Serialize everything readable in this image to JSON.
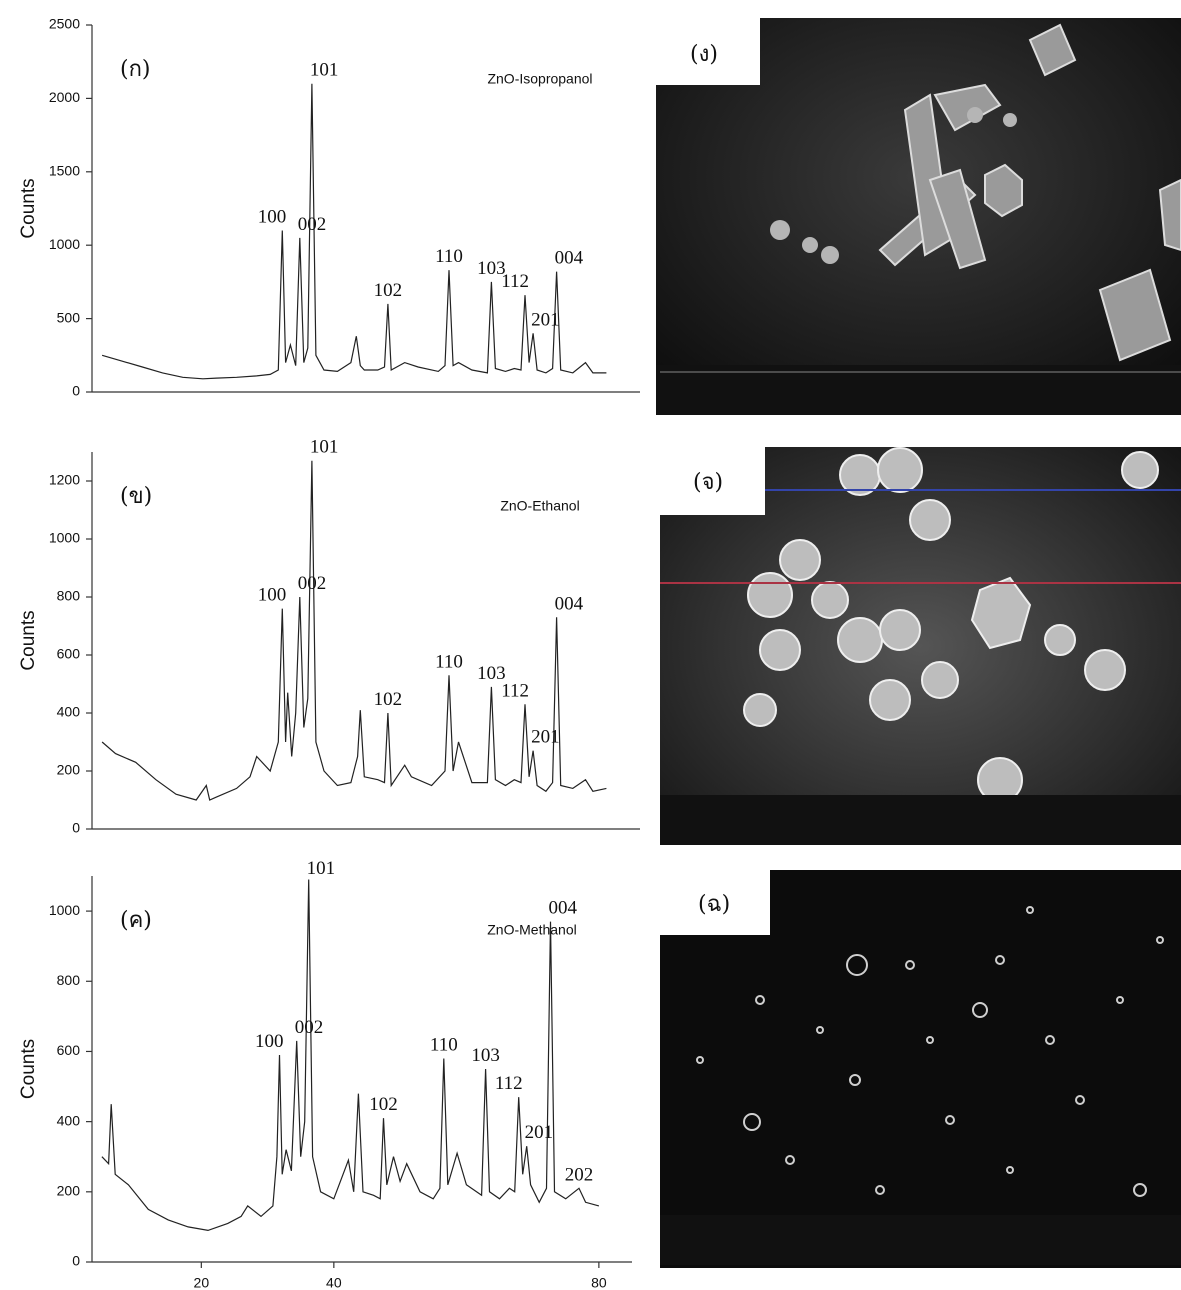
{
  "chart_data": [
    {
      "type": "line",
      "panel_label": "(ก)",
      "annotation": "ZnO-Isopropanol",
      "y_label": "Counts",
      "xlim": [
        3.5,
        85
      ],
      "ylim": [
        0,
        2500
      ],
      "yticks": [
        0,
        500,
        1000,
        1500,
        2000,
        2500
      ],
      "x": [
        5,
        8,
        11,
        14,
        17,
        20,
        22,
        25,
        28,
        30,
        31.2,
        31.8,
        32.3,
        33,
        33.8,
        34.4,
        35,
        35.6,
        36.2,
        36.8,
        38,
        40,
        42,
        42.8,
        43.4,
        44,
        46,
        47,
        47.5,
        48,
        50,
        52,
        55,
        56,
        56.6,
        57.2,
        58,
        60,
        62.3,
        62.9,
        63.5,
        65,
        66.3,
        67.3,
        67.9,
        68.5,
        69.1,
        69.7,
        71,
        72,
        72.6,
        73.2,
        75,
        76.9,
        78,
        80
      ],
      "series": [
        {
          "color": "#222222",
          "values": [
            250,
            210,
            170,
            130,
            100,
            90,
            95,
            100,
            110,
            120,
            150,
            1100,
            200,
            320,
            180,
            1050,
            200,
            300,
            2100,
            250,
            150,
            140,
            200,
            380,
            180,
            150,
            150,
            170,
            600,
            150,
            200,
            170,
            140,
            180,
            830,
            180,
            200,
            150,
            130,
            750,
            160,
            140,
            160,
            150,
            660,
            200,
            400,
            150,
            130,
            160,
            820,
            150,
            130,
            200,
            130,
            130
          ]
        }
      ],
      "peak_labels": [
        {
          "label": "100",
          "x": 31.8
        },
        {
          "label": "002",
          "x": 34.4
        },
        {
          "label": "101",
          "x": 36.2
        },
        {
          "label": "102",
          "x": 47.5
        },
        {
          "label": "110",
          "x": 56.6
        },
        {
          "label": "103",
          "x": 62.9
        },
        {
          "label": "112",
          "x": 67.9
        },
        {
          "label": "201",
          "x": 69.1
        },
        {
          "label": "004",
          "x": 72.6
        }
      ]
    },
    {
      "type": "line",
      "panel_label": "(ข)",
      "annotation": "ZnO-Ethanol",
      "y_label": "Counts",
      "xlim": [
        3.5,
        85
      ],
      "ylim": [
        0,
        1300
      ],
      "yticks": [
        0,
        200,
        400,
        600,
        800,
        1000,
        1200
      ],
      "x": [
        5,
        7,
        10,
        13,
        16,
        19,
        20.5,
        21,
        22,
        25,
        27,
        28,
        30,
        31.2,
        31.8,
        32.3,
        32.6,
        33.2,
        33.8,
        34.4,
        35,
        35.6,
        36.2,
        36.8,
        38,
        40,
        42,
        43,
        43.4,
        44,
        46,
        47,
        47.5,
        48,
        50,
        51,
        54,
        56,
        56.6,
        57.2,
        58,
        60,
        62.3,
        62.9,
        63.5,
        65,
        66.3,
        67.3,
        67.9,
        68.5,
        69.1,
        69.7,
        71,
        72,
        72.6,
        73.2,
        75,
        76.9,
        78,
        80
      ],
      "series": [
        {
          "color": "#222222",
          "values": [
            300,
            260,
            230,
            170,
            120,
            100,
            150,
            100,
            110,
            140,
            180,
            250,
            200,
            300,
            760,
            300,
            470,
            250,
            400,
            800,
            350,
            450,
            1270,
            300,
            200,
            150,
            160,
            250,
            410,
            180,
            170,
            160,
            400,
            150,
            220,
            180,
            150,
            200,
            530,
            200,
            300,
            160,
            160,
            490,
            170,
            150,
            170,
            160,
            430,
            180,
            270,
            150,
            130,
            160,
            730,
            150,
            140,
            170,
            130,
            140
          ]
        }
      ],
      "peak_labels": [
        {
          "label": "100",
          "x": 31.8
        },
        {
          "label": "002",
          "x": 34.4
        },
        {
          "label": "101",
          "x": 36.2
        },
        {
          "label": "102",
          "x": 47.5
        },
        {
          "label": "110",
          "x": 56.6
        },
        {
          "label": "103",
          "x": 62.9
        },
        {
          "label": "112",
          "x": 67.9
        },
        {
          "label": "201",
          "x": 69.1
        },
        {
          "label": "004",
          "x": 72.6
        }
      ]
    },
    {
      "type": "line",
      "panel_label": "(ค)",
      "annotation": "ZnO-Methanol",
      "y_label": "Counts",
      "xlim": [
        3.5,
        85
      ],
      "ylim": [
        0,
        1100
      ],
      "yticks": [
        0,
        200,
        400,
        600,
        800,
        1000
      ],
      "xticks": [
        20,
        40,
        80
      ],
      "x": [
        5,
        6,
        6.4,
        7,
        9,
        12,
        15,
        18,
        21,
        24,
        26,
        27,
        29,
        30.8,
        31.4,
        31.8,
        32.2,
        32.8,
        33.6,
        34.4,
        35,
        35.6,
        36.2,
        36.8,
        38,
        40,
        42.2,
        43,
        43.7,
        44.4,
        46,
        47,
        47.5,
        48,
        49,
        50,
        51,
        53,
        55,
        56,
        56.6,
        57.2,
        58.6,
        60,
        62.3,
        62.9,
        63.5,
        65,
        66.5,
        67.3,
        67.9,
        68.5,
        69.1,
        69.7,
        71,
        72.1,
        72.7,
        73.3,
        75,
        77,
        78,
        80
      ],
      "series": [
        {
          "color": "#222222",
          "values": [
            300,
            280,
            450,
            250,
            220,
            150,
            120,
            100,
            90,
            110,
            130,
            160,
            130,
            160,
            300,
            590,
            250,
            320,
            260,
            630,
            300,
            400,
            1090,
            300,
            200,
            180,
            290,
            200,
            480,
            200,
            190,
            180,
            410,
            220,
            300,
            230,
            280,
            200,
            180,
            210,
            580,
            220,
            310,
            220,
            190,
            550,
            200,
            180,
            210,
            200,
            470,
            250,
            330,
            220,
            170,
            210,
            970,
            200,
            180,
            210,
            170,
            160
          ]
        }
      ],
      "peak_labels": [
        {
          "label": "100",
          "x": 31.8
        },
        {
          "label": "002",
          "x": 34.4
        },
        {
          "label": "101",
          "x": 36.2
        },
        {
          "label": "102",
          "x": 47.5
        },
        {
          "label": "110",
          "x": 56.6
        },
        {
          "label": "103",
          "x": 62.9
        },
        {
          "label": "112",
          "x": 67.9
        },
        {
          "label": "201",
          "x": 69.1
        },
        {
          "label": "004",
          "x": 72.7
        },
        {
          "label": "202",
          "x": 77
        }
      ]
    }
  ],
  "images": [
    {
      "label": "(ง)"
    },
    {
      "label": "(จ)"
    },
    {
      "label": "(ฉ)"
    }
  ]
}
